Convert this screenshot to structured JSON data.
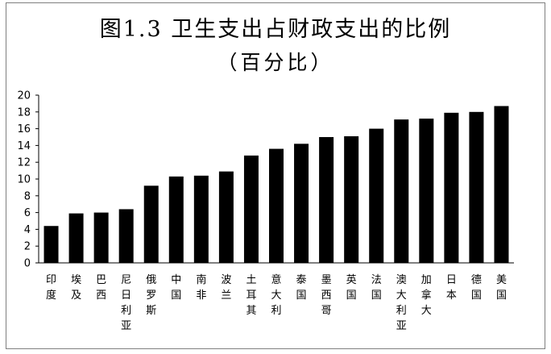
{
  "title": "图1.3 卫生支出占财政支出的比例",
  "subtitle": "（百分比）",
  "chart_data": {
    "type": "bar",
    "title": "图1.3 卫生支出占财政支出的比例",
    "subtitle": "（百分比）",
    "xlabel": "",
    "ylabel": "",
    "ylim": [
      0,
      20
    ],
    "yticks": [
      0,
      2,
      4,
      6,
      8,
      10,
      12,
      14,
      16,
      18,
      20
    ],
    "grid": false,
    "legend": "none",
    "bar_color": "#000000",
    "categories": [
      "印度",
      "埃及",
      "巴西",
      "尼日利亚",
      "俄罗斯",
      "中国",
      "南非",
      "波兰",
      "土耳其",
      "意大利",
      "泰国",
      "墨西哥",
      "英国",
      "法国",
      "澳大利亚",
      "加拿大",
      "日本",
      "德国",
      "美国"
    ],
    "values": [
      4.4,
      5.9,
      6.0,
      6.4,
      9.2,
      10.3,
      10.4,
      10.9,
      12.8,
      13.6,
      14.2,
      15.0,
      15.1,
      16.0,
      17.1,
      17.2,
      17.9,
      18.0,
      18.7
    ]
  }
}
